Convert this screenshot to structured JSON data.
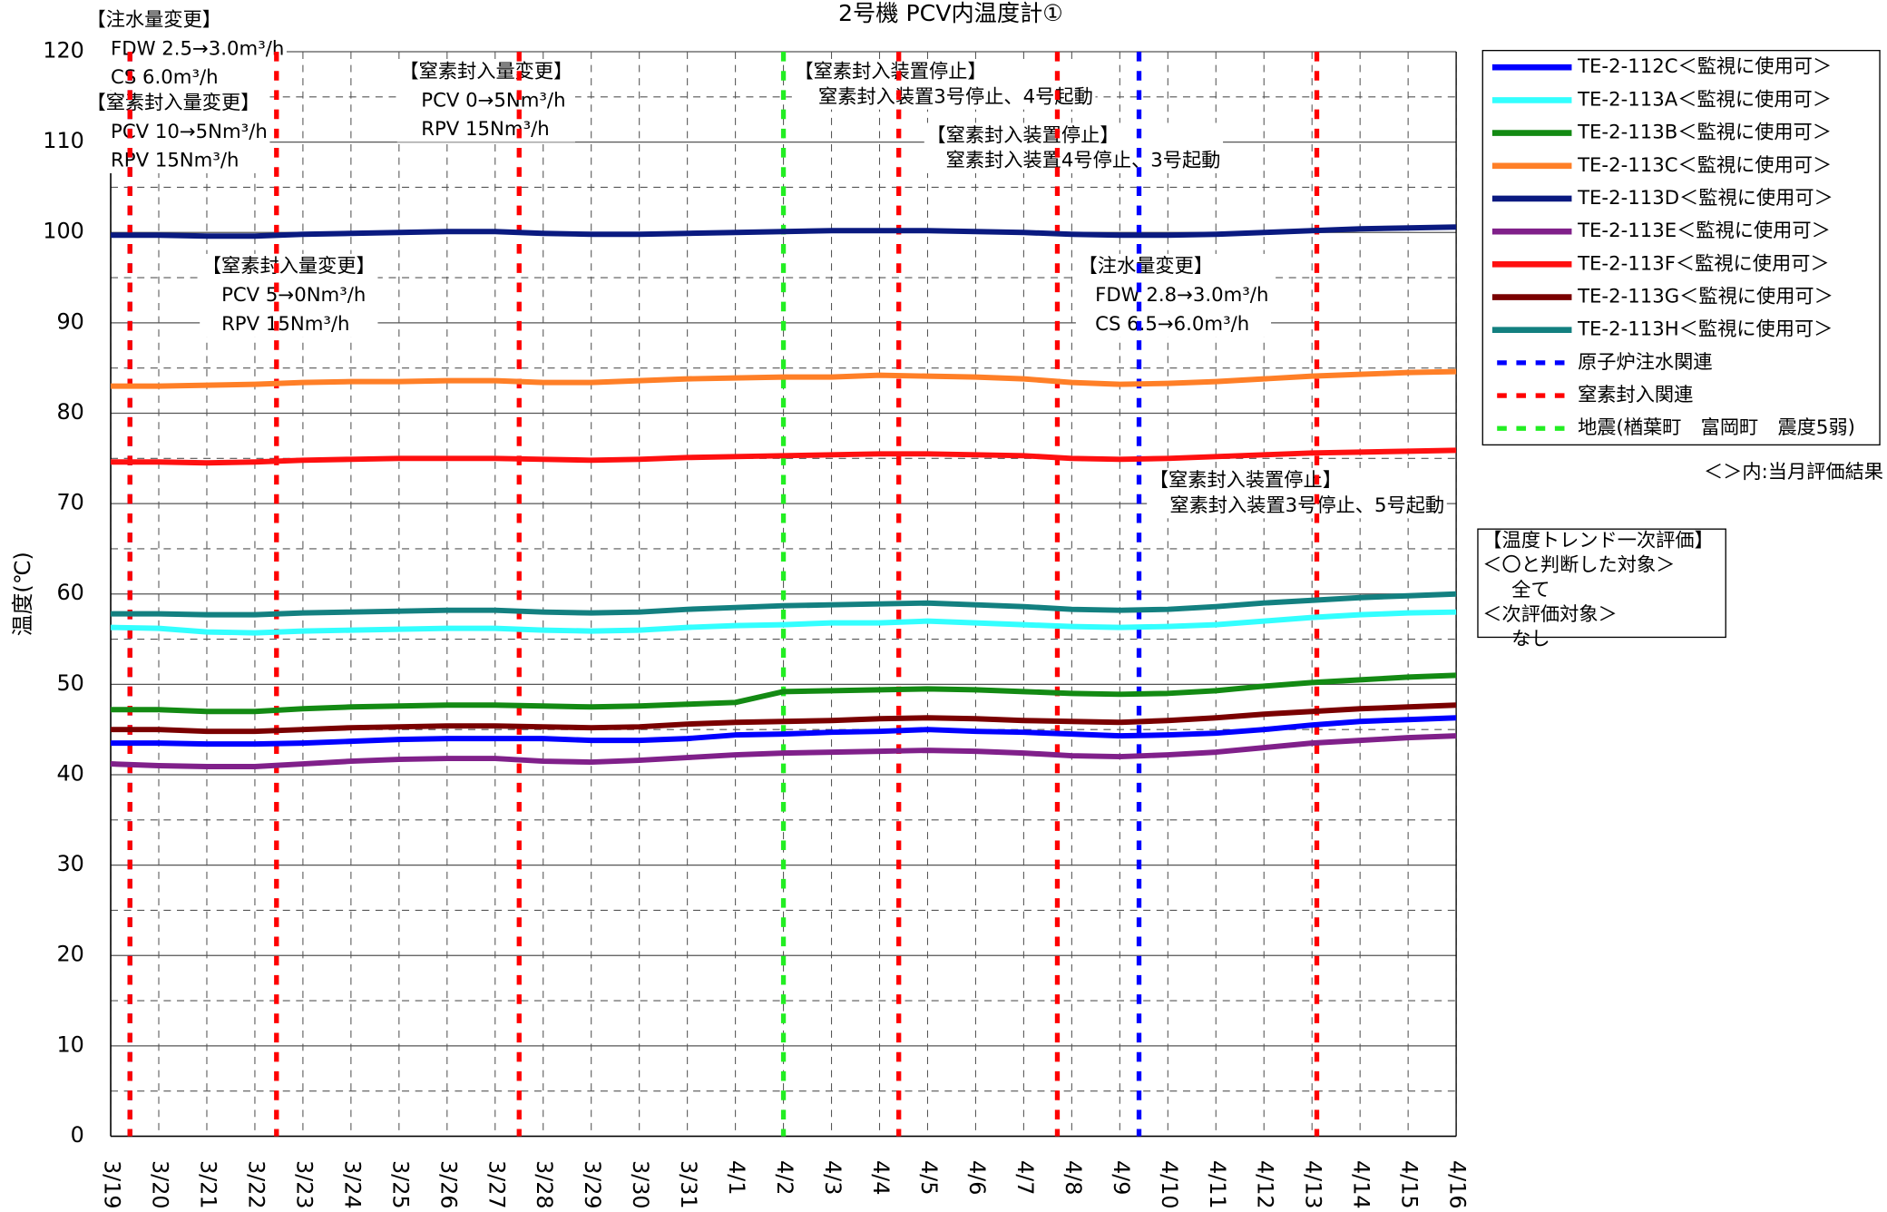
{
  "chart_data": {
    "type": "line",
    "title": "2号機  PCV内温度計①",
    "ylabel": "温度(℃)",
    "categories": [
      "3/19",
      "3/20",
      "3/21",
      "3/22",
      "3/23",
      "3/24",
      "3/25",
      "3/26",
      "3/27",
      "3/28",
      "3/29",
      "3/30",
      "3/31",
      "4/1",
      "4/2",
      "4/3",
      "4/4",
      "4/5",
      "4/6",
      "4/7",
      "4/8",
      "4/9",
      "4/10",
      "4/11",
      "4/12",
      "4/13",
      "4/14",
      "4/15",
      "4/16"
    ],
    "ylim": [
      0,
      120
    ],
    "yticks": [
      0,
      10,
      20,
      30,
      40,
      50,
      60,
      70,
      80,
      90,
      100,
      110,
      120
    ],
    "grid": true,
    "legend": "right",
    "series": [
      {
        "name": "TE-2-112C＜監視に使用可＞",
        "color": "#0000ff",
        "values": [
          43.5,
          43.5,
          43.4,
          43.4,
          43.5,
          43.7,
          43.9,
          44,
          44,
          44,
          43.8,
          43.8,
          44,
          44.4,
          44.5,
          44.7,
          44.8,
          45,
          44.8,
          44.7,
          44.5,
          44.3,
          44.4,
          44.6,
          45,
          45.5,
          45.9,
          46.1,
          46.3
        ]
      },
      {
        "name": "TE-2-113A＜監視に使用可＞",
        "color": "#33ffff",
        "values": [
          56.3,
          56.2,
          55.8,
          55.7,
          55.9,
          56,
          56.1,
          56.2,
          56.2,
          56,
          55.9,
          56,
          56.3,
          56.5,
          56.6,
          56.8,
          56.8,
          57,
          56.8,
          56.6,
          56.4,
          56.3,
          56.4,
          56.6,
          57,
          57.4,
          57.7,
          57.9,
          58
        ]
      },
      {
        "name": "TE-2-113B＜監視に使用可＞",
        "color": "#138a13",
        "values": [
          47.2,
          47.2,
          47,
          47,
          47.3,
          47.5,
          47.6,
          47.7,
          47.7,
          47.6,
          47.5,
          47.6,
          47.8,
          48,
          49.2,
          49.3,
          49.4,
          49.5,
          49.4,
          49.2,
          49,
          48.9,
          49,
          49.3,
          49.8,
          50.2,
          50.5,
          50.8,
          51
        ]
      },
      {
        "name": "TE-2-113C＜監視に使用可＞",
        "color": "#ff7f27",
        "values": [
          83,
          83,
          83.1,
          83.2,
          83.4,
          83.5,
          83.5,
          83.6,
          83.6,
          83.4,
          83.4,
          83.6,
          83.8,
          83.9,
          84,
          84,
          84.2,
          84.1,
          84,
          83.8,
          83.4,
          83.2,
          83.3,
          83.5,
          83.8,
          84.1,
          84.3,
          84.5,
          84.6
        ]
      },
      {
        "name": "TE-2-113D＜監視に使用可＞",
        "color": "#0a1a80",
        "values": [
          99.7,
          99.7,
          99.6,
          99.6,
          99.8,
          99.9,
          100,
          100.1,
          100.1,
          99.9,
          99.8,
          99.8,
          99.9,
          100,
          100.1,
          100.2,
          100.2,
          100.2,
          100.1,
          100,
          99.8,
          99.7,
          99.7,
          99.8,
          100,
          100.2,
          100.4,
          100.5,
          100.6
        ]
      },
      {
        "name": "TE-2-113E＜監視に使用可＞",
        "color": "#80208a",
        "values": [
          41.2,
          41,
          40.9,
          40.9,
          41.2,
          41.5,
          41.7,
          41.8,
          41.8,
          41.5,
          41.4,
          41.6,
          41.9,
          42.2,
          42.4,
          42.5,
          42.6,
          42.7,
          42.6,
          42.4,
          42.1,
          42,
          42.2,
          42.5,
          43,
          43.5,
          43.8,
          44.1,
          44.3
        ]
      },
      {
        "name": "TE-2-113F＜監視に使用可＞",
        "color": "#ff1010",
        "values": [
          74.6,
          74.6,
          74.5,
          74.6,
          74.8,
          74.9,
          75,
          75,
          75,
          74.9,
          74.8,
          74.9,
          75.1,
          75.2,
          75.3,
          75.4,
          75.5,
          75.5,
          75.4,
          75.3,
          75,
          74.9,
          75,
          75.2,
          75.4,
          75.6,
          75.7,
          75.8,
          75.9
        ]
      },
      {
        "name": "TE-2-113G＜監視に使用可＞",
        "color": "#7a0000",
        "values": [
          45,
          45,
          44.8,
          44.8,
          45,
          45.2,
          45.3,
          45.4,
          45.4,
          45.3,
          45.2,
          45.3,
          45.6,
          45.8,
          45.9,
          46,
          46.2,
          46.3,
          46.2,
          46,
          45.9,
          45.8,
          46,
          46.3,
          46.7,
          47,
          47.3,
          47.5,
          47.7
        ]
      },
      {
        "name": "TE-2-113H＜監視に使用可＞",
        "color": "#138080",
        "values": [
          57.8,
          57.8,
          57.7,
          57.7,
          57.9,
          58,
          58.1,
          58.2,
          58.2,
          58,
          57.9,
          58,
          58.3,
          58.5,
          58.7,
          58.8,
          58.9,
          59,
          58.8,
          58.6,
          58.3,
          58.2,
          58.3,
          58.6,
          59,
          59.3,
          59.6,
          59.8,
          60
        ]
      }
    ],
    "events": [
      {
        "name": "原子炉注水関連",
        "color": "#0000ff",
        "x": [
          0.4,
          21.4
        ]
      },
      {
        "name": "窒素封入関連",
        "color": "#ff0000",
        "x": [
          0.4,
          3.45,
          8.5,
          16.4,
          19.7,
          25.1
        ]
      },
      {
        "name": "地震(楢葉町　富岡町　震度5弱)",
        "color": "#22ee22",
        "x": [
          14.0
        ]
      }
    ],
    "annotations": [
      [
        "【注水量変更】",
        "FDW  2.5→3.0m³/h",
        "CS    6.0m³/h"
      ],
      [
        "【窒素封入量変更】",
        "PCV  10→5Nm³/h",
        "RPV  15Nm³/h"
      ],
      [
        "【窒素封入量変更】",
        "PCV  0→5Nm³/h",
        "RPV  15Nm³/h"
      ],
      [
        "【窒素封入装置停止】",
        "窒素封入装置3号停止、4号起動"
      ],
      [
        "【窒素封入装置停止】",
        "窒素封入装置4号停止、3号起動"
      ],
      [
        "【窒素封入量変更】",
        "PCV  5→0Nm³/h",
        "RPV  15Nm³/h"
      ],
      [
        "【注水量変更】",
        "FDW  2.8→3.0m³/h",
        "CS    6.5→6.0m³/h"
      ],
      [
        "【窒素封入装置停止】",
        "窒素封入装置3号停止、5号起動"
      ]
    ],
    "legend_note": "＜＞内:当月評価結果",
    "evaluation": [
      "【温度トレンド一次評価】",
      "＜〇と判断した対象＞",
      "全て",
      "＜次評価対象＞",
      "なし"
    ]
  }
}
